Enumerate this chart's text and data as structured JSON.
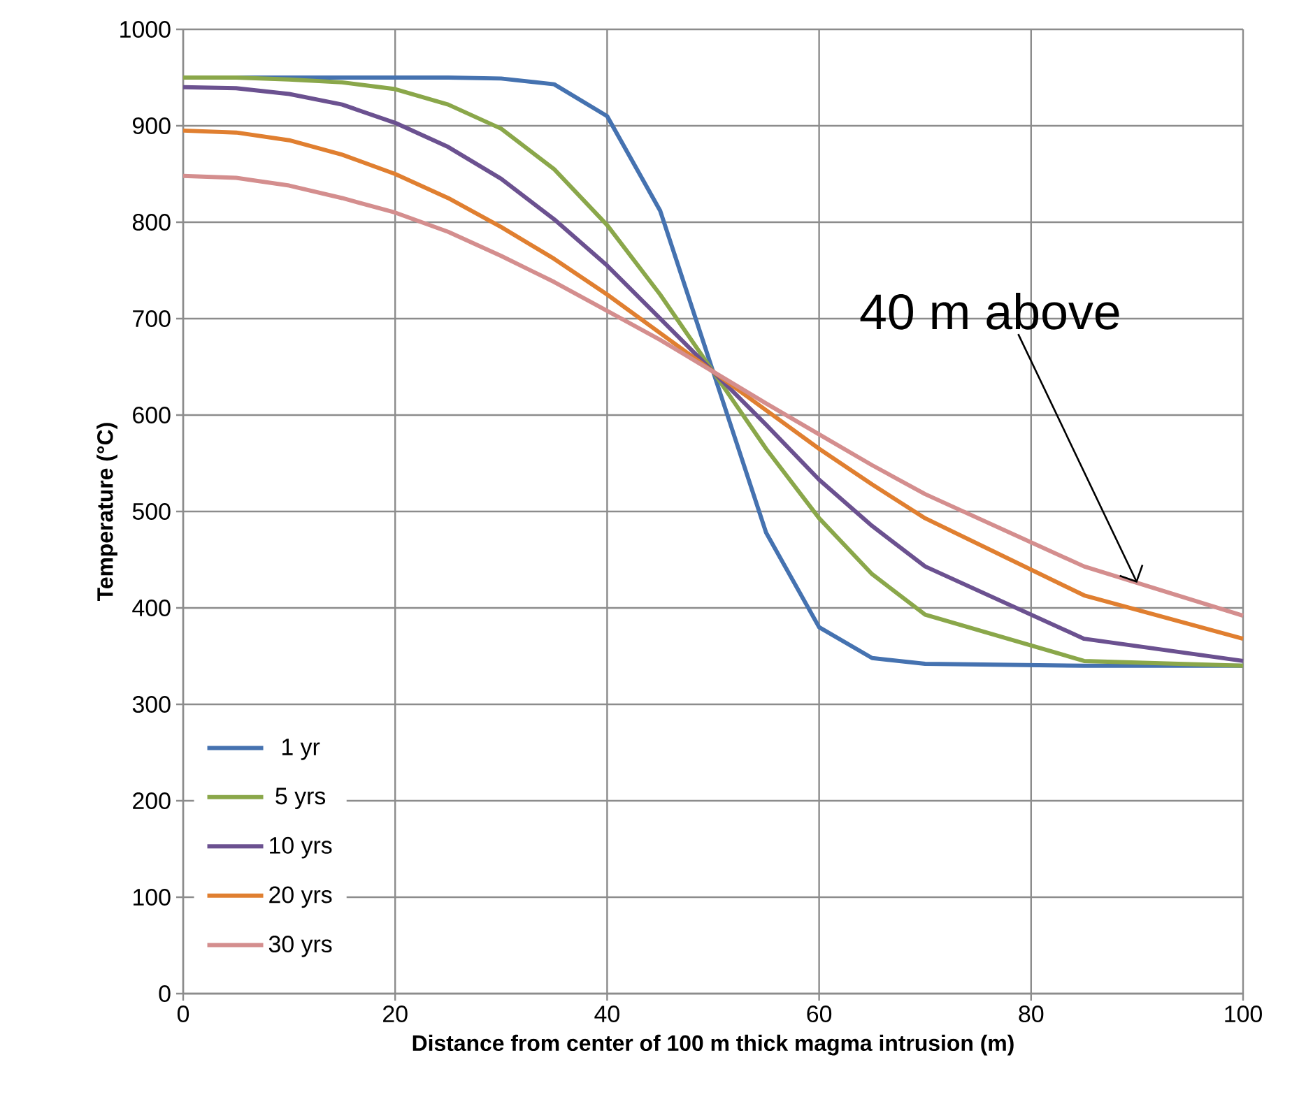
{
  "chart_data": {
    "type": "line",
    "xlabel": "Distance from center of 100 m thick magma intrusion (m)",
    "ylabel": "Temperature (°C)",
    "xlim": [
      0,
      100
    ],
    "ylim": [
      0,
      1000
    ],
    "xticks": [
      0,
      20,
      40,
      60,
      80,
      100
    ],
    "yticks": [
      0,
      100,
      200,
      300,
      400,
      500,
      600,
      700,
      800,
      900,
      1000
    ],
    "grid": true,
    "legend": "bottom left",
    "marker": "none",
    "line_style": "solid",
    "x": [
      0,
      5,
      10,
      15,
      20,
      25,
      30,
      35,
      40,
      45,
      50,
      55,
      60,
      65,
      70,
      85,
      100
    ],
    "series": [
      {
        "name": "1 yr",
        "color": "#4572b0",
        "values": [
          950,
          950,
          950,
          950,
          950,
          950,
          949,
          943,
          910,
          812,
          645,
          478,
          380,
          348,
          342,
          340,
          340
        ]
      },
      {
        "name": "5 yrs",
        "color": "#8aa74a",
        "values": [
          950,
          950,
          948,
          945,
          938,
          922,
          897,
          855,
          797,
          725,
          645,
          565,
          493,
          435,
          393,
          345,
          340
        ]
      },
      {
        "name": "10 yrs",
        "color": "#6b5190",
        "values": [
          940,
          939,
          933,
          922,
          903,
          878,
          845,
          803,
          755,
          700,
          645,
          590,
          533,
          485,
          443,
          368,
          345
        ]
      },
      {
        "name": "20 yrs",
        "color": "#e07f30",
        "values": [
          895,
          893,
          885,
          870,
          850,
          825,
          795,
          762,
          725,
          685,
          645,
          605,
          565,
          528,
          493,
          413,
          368
        ]
      },
      {
        "name": "30 yrs",
        "color": "#d48e8e",
        "values": [
          848,
          846,
          838,
          825,
          810,
          790,
          765,
          738,
          708,
          678,
          645,
          612,
          580,
          548,
          518,
          443,
          392
        ]
      }
    ],
    "annotations": [
      {
        "text": "40 m above",
        "x": 90,
        "y": 426
      }
    ]
  }
}
